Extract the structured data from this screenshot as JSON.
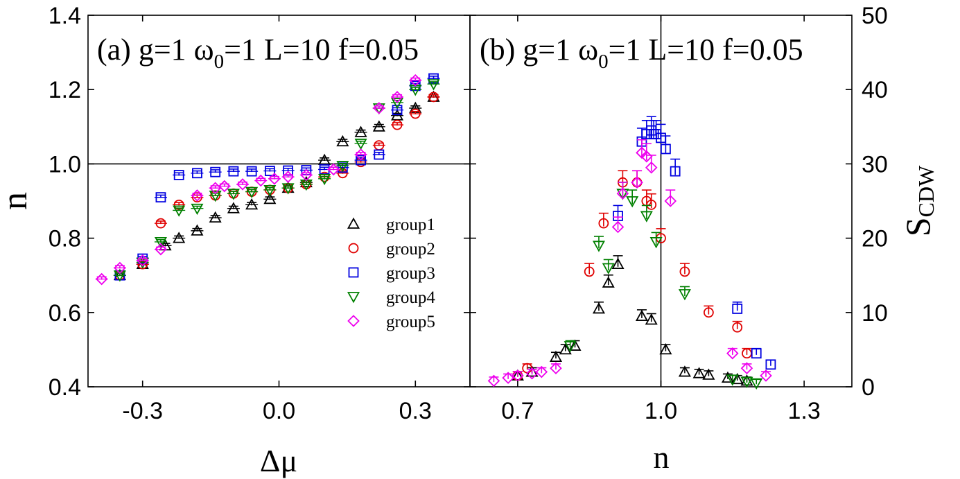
{
  "chart_data": [
    {
      "type": "scatter",
      "title": "(a) g=1 ω0=1 L=10 f=0.05",
      "title_parts": {
        "label": "(a) g=1 ω",
        "sub": "0",
        "rest": "=1 L=10 f=0.05"
      },
      "xlabel": "Δμ",
      "ylabel": "n",
      "xlim": [
        -0.42,
        0.42
      ],
      "ylim": [
        0.4,
        1.4
      ],
      "xticks": [
        "-0.3",
        "0.0",
        "0.3"
      ],
      "yticks": [
        "0.4",
        "0.6",
        "0.8",
        "1.0",
        "1.2",
        "1.4"
      ],
      "reference_line": {
        "y": 1.0
      },
      "legend": {
        "placement": "center-right"
      },
      "series": [
        {
          "name": "group1",
          "color": "#000000",
          "marker": "triangle-up",
          "x": [
            -0.35,
            -0.3,
            -0.25,
            -0.22,
            -0.18,
            -0.14,
            -0.1,
            -0.06,
            -0.02,
            0.02,
            0.06,
            0.1,
            0.14,
            0.18,
            0.22,
            0.26,
            0.3,
            0.34
          ],
          "y": [
            0.7,
            0.73,
            0.78,
            0.8,
            0.82,
            0.855,
            0.88,
            0.89,
            0.905,
            0.935,
            0.95,
            1.01,
            1.06,
            1.085,
            1.1,
            1.13,
            1.15,
            1.18
          ]
        },
        {
          "name": "group2",
          "color": "#e00000",
          "marker": "circle",
          "x": [
            -0.35,
            -0.3,
            -0.26,
            -0.22,
            -0.18,
            -0.14,
            -0.1,
            -0.06,
            -0.02,
            0.02,
            0.06,
            0.1,
            0.14,
            0.18,
            0.22,
            0.26,
            0.3,
            0.34
          ],
          "y": [
            0.7,
            0.73,
            0.84,
            0.89,
            0.91,
            0.915,
            0.92,
            0.925,
            0.93,
            0.935,
            0.945,
            0.965,
            0.975,
            1.005,
            1.05,
            1.105,
            1.135,
            1.18
          ]
        },
        {
          "name": "group3",
          "color": "#0000e0",
          "marker": "square",
          "x": [
            -0.35,
            -0.3,
            -0.26,
            -0.22,
            -0.18,
            -0.14,
            -0.1,
            -0.06,
            -0.02,
            0.02,
            0.06,
            0.1,
            0.14,
            0.18,
            0.22,
            0.26,
            0.3,
            0.34
          ],
          "y": [
            0.7,
            0.745,
            0.91,
            0.97,
            0.975,
            0.978,
            0.98,
            0.98,
            0.981,
            0.982,
            0.983,
            0.985,
            0.99,
            1.01,
            1.025,
            1.145,
            1.21,
            1.23
          ]
        },
        {
          "name": "group4",
          "color": "#008000",
          "marker": "triangle-down",
          "x": [
            -0.35,
            -0.3,
            -0.26,
            -0.22,
            -0.18,
            -0.14,
            -0.1,
            -0.06,
            -0.02,
            0.02,
            0.06,
            0.1,
            0.14,
            0.18,
            0.22,
            0.26,
            0.3,
            0.34
          ],
          "y": [
            0.7,
            0.735,
            0.79,
            0.875,
            0.88,
            0.915,
            0.92,
            0.925,
            0.93,
            0.935,
            0.945,
            0.96,
            0.995,
            1.055,
            1.15,
            1.165,
            1.2,
            1.215
          ]
        },
        {
          "name": "group5",
          "color": "#ee00ee",
          "marker": "diamond",
          "x": [
            -0.39,
            -0.35,
            -0.3,
            -0.26,
            -0.18,
            -0.14,
            -0.12,
            -0.08,
            -0.04,
            -0.01,
            0.02,
            0.06,
            0.12,
            0.18,
            0.22,
            0.26,
            0.3
          ],
          "y": [
            0.69,
            0.72,
            0.74,
            0.77,
            0.915,
            0.935,
            0.94,
            0.945,
            0.955,
            0.96,
            0.965,
            0.97,
            0.985,
            1.025,
            1.15,
            1.18,
            1.225
          ]
        }
      ]
    },
    {
      "type": "scatter",
      "title": "(b) g=1 ω0=1 L=10 f=0.05",
      "title_parts": {
        "label": "(b) g=1 ω",
        "sub": "0",
        "rest": "=1 L=10 f=0.05"
      },
      "xlabel": "n",
      "ylabel": "SCDW",
      "ylabel_parts": {
        "main": "S",
        "sub": "CDW"
      },
      "xlim": [
        0.6,
        1.4
      ],
      "ylim": [
        0,
        50
      ],
      "xticks": [
        "0.7",
        "1.0",
        "1.3"
      ],
      "yticks": [
        "0",
        "10",
        "20",
        "30",
        "40",
        "50"
      ],
      "reference_line": {
        "x": 1.0
      },
      "series": [
        {
          "name": "group1",
          "color": "#000000",
          "marker": "triangle-up",
          "x": [
            0.7,
            0.73,
            0.78,
            0.8,
            0.82,
            0.87,
            0.89,
            0.91,
            0.96,
            0.98,
            1.01,
            1.05,
            1.08,
            1.1,
            1.14,
            1.16,
            1.18
          ],
          "y": [
            1.5,
            2.0,
            4.0,
            5.0,
            5.5,
            10.5,
            14.0,
            16.5,
            9.5,
            9.0,
            5.0,
            2.0,
            1.8,
            1.6,
            1.2,
            1.0,
            0.8
          ]
        },
        {
          "name": "group2",
          "color": "#e00000",
          "marker": "circle",
          "x": [
            0.7,
            0.72,
            0.85,
            0.88,
            0.92,
            0.95,
            0.97,
            0.98,
            1.0,
            1.05,
            1.1,
            1.16,
            1.18
          ],
          "y": [
            1.5,
            2.5,
            15.5,
            22.0,
            27.5,
            27.5,
            25.0,
            24.5,
            20.0,
            15.5,
            10.0,
            8.0,
            4.5
          ]
        },
        {
          "name": "group3",
          "color": "#0000e0",
          "marker": "square",
          "x": [
            0.91,
            0.96,
            0.97,
            0.98,
            0.985,
            0.99,
            1.0,
            1.01,
            1.03,
            1.16,
            1.2,
            1.23
          ],
          "y": [
            23.0,
            33.0,
            34.0,
            34.5,
            34.0,
            34.0,
            33.5,
            32.0,
            29.0,
            10.5,
            4.5,
            3.0
          ]
        },
        {
          "name": "group4",
          "color": "#008000",
          "marker": "triangle-down",
          "x": [
            0.81,
            0.87,
            0.89,
            0.92,
            0.94,
            0.97,
            0.99,
            1.05,
            1.15,
            1.18,
            1.2
          ],
          "y": [
            5.5,
            19.0,
            16.0,
            26.0,
            25.0,
            23.0,
            19.5,
            12.5,
            1.0,
            0.7,
            0.5
          ]
        },
        {
          "name": "group5",
          "color": "#ee00ee",
          "marker": "diamond",
          "x": [
            0.65,
            0.68,
            0.7,
            0.73,
            0.75,
            0.78,
            0.91,
            0.92,
            0.95,
            0.96,
            0.97,
            0.98,
            1.02,
            1.15,
            1.18,
            1.22
          ],
          "y": [
            0.8,
            1.2,
            1.5,
            1.8,
            2.0,
            2.5,
            21.5,
            26.0,
            27.5,
            31.5,
            31.0,
            29.5,
            25.0,
            4.5,
            2.5,
            1.5
          ]
        }
      ]
    }
  ]
}
